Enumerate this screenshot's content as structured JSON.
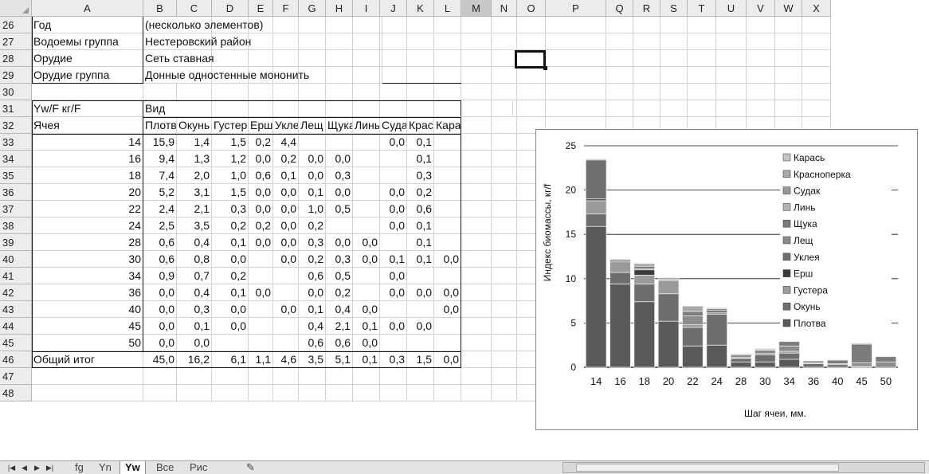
{
  "columns": [
    {
      "letter": "A",
      "w": 140
    },
    {
      "letter": "B",
      "w": 42
    },
    {
      "letter": "C",
      "w": 44
    },
    {
      "letter": "D",
      "w": 46
    },
    {
      "letter": "E",
      "w": 31
    },
    {
      "letter": "F",
      "w": 32
    },
    {
      "letter": "G",
      "w": 34
    },
    {
      "letter": "H",
      "w": 34
    },
    {
      "letter": "I",
      "w": 34
    },
    {
      "letter": "J",
      "w": 34
    },
    {
      "letter": "K",
      "w": 34
    },
    {
      "letter": "L",
      "w": 34
    },
    {
      "letter": "M",
      "w": 38
    },
    {
      "letter": "N",
      "w": 32
    },
    {
      "letter": "O",
      "w": 36
    },
    {
      "letter": "P",
      "w": 76
    },
    {
      "letter": "Q",
      "w": 34
    },
    {
      "letter": "R",
      "w": 34
    },
    {
      "letter": "S",
      "w": 34
    },
    {
      "letter": "T",
      "w": 36
    },
    {
      "letter": "U",
      "w": 38
    },
    {
      "letter": "V",
      "w": 36
    },
    {
      "letter": "W",
      "w": 34
    },
    {
      "letter": "X",
      "w": 36
    }
  ],
  "selected_column": "M",
  "rows": [
    {
      "n": 26,
      "cells": {
        "A": "Год",
        "B": "(несколько элементов)"
      }
    },
    {
      "n": 27,
      "cells": {
        "A": "Водоемы группа",
        "B": "Нестеровский район"
      }
    },
    {
      "n": 28,
      "cells": {
        "A": "Орудие",
        "B": "Сеть ставная"
      }
    },
    {
      "n": 29,
      "cells": {
        "A": "Орудие группа",
        "B": "Донные одностенные мононить"
      }
    },
    {
      "n": 30,
      "cells": {}
    },
    {
      "n": 31,
      "cells": {
        "A": " Yw/F кг/F",
        "B": "Вид"
      }
    },
    {
      "n": 32,
      "cells": {
        "A": "Ячея",
        "B": "Плотва",
        "C": "Окунь",
        "D": "Густера",
        "E": "Ерш",
        "F": "Уклея",
        "G": "Лещ",
        "H": "Щука",
        "I": "Линь",
        "J": "Судак",
        "K": "Красноперка",
        "L": "Карась"
      }
    },
    {
      "n": 33,
      "cells": {
        "A": "14",
        "B": "15,9",
        "C": "1,4",
        "D": "1,5",
        "E": "0,2",
        "F": "4,4",
        "J": "0,0",
        "K": "0,1"
      }
    },
    {
      "n": 34,
      "cells": {
        "A": "16",
        "B": "9,4",
        "C": "1,3",
        "D": "1,2",
        "E": "0,0",
        "F": "0,2",
        "G": "0,0",
        "H": "0,0",
        "K": "0,1"
      }
    },
    {
      "n": 35,
      "cells": {
        "A": "18",
        "B": "7,4",
        "C": "2,0",
        "D": "1,0",
        "E": "0,6",
        "F": "0,1",
        "G": "0,0",
        "H": "0,3",
        "K": "0,3"
      }
    },
    {
      "n": 36,
      "cells": {
        "A": "20",
        "B": "5,2",
        "C": "3,1",
        "D": "1,5",
        "E": "0,0",
        "F": "0,0",
        "G": "0,1",
        "H": "0,0",
        "J": "0,0",
        "K": "0,2"
      }
    },
    {
      "n": 37,
      "cells": {
        "A": "22",
        "B": "2,4",
        "C": "2,1",
        "D": "0,3",
        "E": "0,0",
        "F": "0,0",
        "G": "1,0",
        "H": "0,5",
        "J": "0,0",
        "K": "0,6"
      }
    },
    {
      "n": 38,
      "cells": {
        "A": "24",
        "B": "2,5",
        "C": "3,5",
        "D": "0,2",
        "E": "0,2",
        "F": "0,0",
        "G": "0,2",
        "J": "0,0",
        "K": "0,1"
      }
    },
    {
      "n": 39,
      "cells": {
        "A": "28",
        "B": "0,6",
        "C": "0,4",
        "D": "0,1",
        "E": "0,0",
        "F": "0,0",
        "G": "0,3",
        "H": "0,0",
        "I": "0,0",
        "K": "0,1"
      }
    },
    {
      "n": 40,
      "cells": {
        "A": "30",
        "B": "0,6",
        "C": "0,8",
        "D": "0,0",
        "F": "0,0",
        "G": "0,2",
        "H": "0,3",
        "I": "0,0",
        "J": "0,1",
        "K": "0,1",
        "L": "0,0"
      }
    },
    {
      "n": 41,
      "cells": {
        "A": "34",
        "B": "0,9",
        "C": "0,7",
        "D": "0,2",
        "G": "0,6",
        "H": "0,5",
        "J": "0,0"
      }
    },
    {
      "n": 42,
      "cells": {
        "A": "36",
        "B": "0,0",
        "C": "0,4",
        "D": "0,1",
        "E": "0,0",
        "G": "0,0",
        "H": "0,2",
        "J": "0,0",
        "K": "0,0",
        "L": "0,0"
      }
    },
    {
      "n": 43,
      "cells": {
        "A": "40",
        "B": "0,0",
        "C": "0,3",
        "D": "0,0",
        "F": "0,0",
        "G": "0,1",
        "H": "0,4",
        "I": "0,0",
        "L": "0,0"
      }
    },
    {
      "n": 44,
      "cells": {
        "A": "45",
        "B": "0,0",
        "C": "0,1",
        "D": "0,0",
        "G": "0,4",
        "H": "2,1",
        "I": "0,1",
        "J": "0,0",
        "K": "0,0"
      }
    },
    {
      "n": 45,
      "cells": {
        "A": "50",
        "B": "0,0",
        "C": "0,0",
        "G": "0,6",
        "H": "0,6",
        "I": "0,0"
      }
    },
    {
      "n": 46,
      "cells": {
        "A": "Общий итог",
        "B": "45,0",
        "C": "16,2",
        "D": "6,1",
        "E": "1,1",
        "F": "4,6",
        "G": "3,5",
        "H": "5,1",
        "I": "0,1",
        "J": "0,3",
        "K": "1,5",
        "L": "0,0"
      }
    },
    {
      "n": 47,
      "cells": {}
    },
    {
      "n": 48,
      "cells": {}
    }
  ],
  "sheet_tabs": [
    {
      "label": "fg",
      "active": false
    },
    {
      "label": "Yn",
      "active": false
    },
    {
      "label": "Yw",
      "active": true
    },
    {
      "label": "Все",
      "active": false
    },
    {
      "label": "Рис",
      "active": false
    }
  ],
  "tab_nav_icons": [
    "first-sheet-icon",
    "prev-sheet-icon",
    "next-sheet-icon",
    "last-sheet-icon"
  ],
  "chart_data": {
    "type": "bar",
    "stacked": true,
    "categories": [
      "14",
      "16",
      "18",
      "20",
      "22",
      "24",
      "28",
      "30",
      "34",
      "36",
      "40",
      "45",
      "50"
    ],
    "series": [
      {
        "name": "Плотва",
        "values": [
          15.9,
          9.4,
          7.4,
          5.2,
          2.4,
          2.5,
          0.6,
          0.6,
          0.9,
          0.0,
          0.0,
          0.0,
          0.0
        ]
      },
      {
        "name": "Окунь",
        "values": [
          1.4,
          1.3,
          2.0,
          3.1,
          2.1,
          3.5,
          0.4,
          0.8,
          0.7,
          0.4,
          0.3,
          0.1,
          0.0
        ]
      },
      {
        "name": "Густера",
        "values": [
          1.5,
          1.2,
          1.0,
          1.5,
          0.3,
          0.2,
          0.1,
          0.0,
          0.2,
          0.1,
          0.0,
          0.0,
          0.0
        ]
      },
      {
        "name": "Ерш",
        "values": [
          0.2,
          0.0,
          0.6,
          0.0,
          0.0,
          0.2,
          0.0,
          0,
          0,
          0.0,
          0,
          0,
          0
        ]
      },
      {
        "name": "Уклея",
        "values": [
          4.4,
          0.2,
          0.1,
          0.0,
          0.0,
          0.0,
          0.0,
          0.0,
          0,
          0,
          0.0,
          0,
          0
        ]
      },
      {
        "name": "Лещ",
        "values": [
          0,
          0.0,
          0.0,
          0.1,
          1.0,
          0.2,
          0.3,
          0.2,
          0.6,
          0.0,
          0.1,
          0.4,
          0.6
        ]
      },
      {
        "name": "Щука",
        "values": [
          0,
          0.0,
          0.3,
          0.0,
          0.5,
          0,
          0.0,
          0.3,
          0.5,
          0.2,
          0.4,
          2.1,
          0.6
        ]
      },
      {
        "name": "Линь",
        "values": [
          0,
          0,
          0,
          0,
          0,
          0,
          0.0,
          0.0,
          0,
          0,
          0.0,
          0.1,
          0.0
        ]
      },
      {
        "name": "Судак",
        "values": [
          0.0,
          0,
          0,
          0.0,
          0.0,
          0.0,
          0,
          0.1,
          0.0,
          0.0,
          0,
          0.0,
          0
        ]
      },
      {
        "name": "Красноперка",
        "values": [
          0.1,
          0.1,
          0.3,
          0.2,
          0.6,
          0.1,
          0.1,
          0.1,
          0,
          0.0,
          0,
          0.0,
          0
        ]
      },
      {
        "name": "Карась",
        "values": [
          0,
          0,
          0,
          0,
          0,
          0,
          0,
          0.0,
          0,
          0.0,
          0.0,
          0,
          0
        ]
      }
    ],
    "xlabel": "Шаг ячеи, мм.",
    "ylabel": "Индекс биомассы, кг/f",
    "ylim": [
      0,
      25
    ],
    "yticks": [
      "0",
      "5",
      "10",
      "15",
      "20",
      "25"
    ],
    "grid": true,
    "legend_position": "right",
    "legend_order": [
      "Карась",
      "Красноперка",
      "Судак",
      "Линь",
      "Щука",
      "Лещ",
      "Уклея",
      "Ерш",
      "Густера",
      "Окунь",
      "Плотва"
    ],
    "series_colors": [
      "#5a5a5a",
      "#6e6e6e",
      "#9a9a9a",
      "#3c3c3c",
      "#707070",
      "#8c8c8c",
      "#7c7c7c",
      "#b4b4b4",
      "#999999",
      "#a8a8a8",
      "#c4c4c4"
    ]
  }
}
